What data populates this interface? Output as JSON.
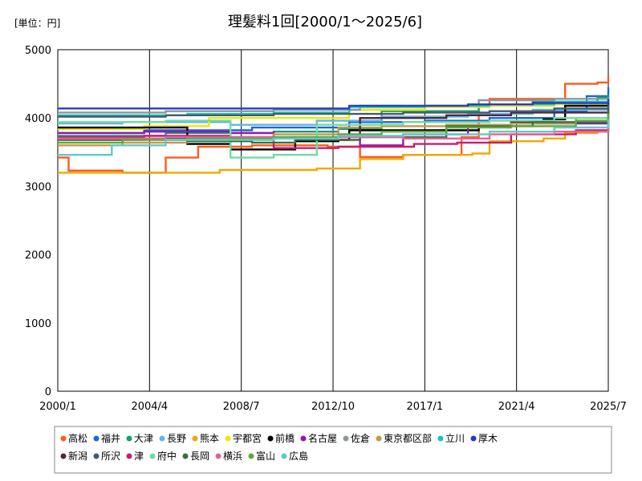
{
  "chart_data": {
    "type": "line",
    "title": "理髪料1回[2000/1～2025/6]",
    "unit_label": "[単位：円]",
    "ylim": [
      0,
      5000
    ],
    "y_ticks": [
      "0",
      "1000",
      "2000",
      "3000",
      "4000",
      "5000"
    ],
    "x_range": [
      2000.0,
      2025.5
    ],
    "x_ticks": [
      {
        "label": "2000/1",
        "value": 2000.0
      },
      {
        "label": "2004/4",
        "value": 2004.25
      },
      {
        "label": "2008/7",
        "value": 2008.5
      },
      {
        "label": "2012/10",
        "value": 2012.75
      },
      {
        "label": "2017/1",
        "value": 2017.0
      },
      {
        "label": "2021/4",
        "value": 2021.25
      },
      {
        "label": "2025/7",
        "value": 2025.5
      }
    ],
    "grid": "vertical only",
    "legend_position": "bottom",
    "series": [
      {
        "name": "高松",
        "color": "#ff5a1e",
        "points": [
          [
            2000.0,
            3420
          ],
          [
            2000.5,
            3230
          ],
          [
            2003.0,
            3200
          ],
          [
            2005.0,
            3420
          ],
          [
            2006.5,
            3580
          ],
          [
            2009.0,
            3600
          ],
          [
            2012.5,
            3580
          ],
          [
            2014.0,
            3430
          ],
          [
            2016.0,
            3460
          ],
          [
            2018.7,
            3720
          ],
          [
            2019.5,
            4180
          ],
          [
            2020.0,
            4280
          ],
          [
            2023.5,
            4500
          ],
          [
            2025.0,
            4520
          ],
          [
            2025.5,
            4600
          ]
        ]
      },
      {
        "name": "福井",
        "color": "#1e64dc",
        "points": [
          [
            2000.0,
            3780
          ],
          [
            2004.0,
            3820
          ],
          [
            2009.0,
            3860
          ],
          [
            2013.5,
            3940
          ],
          [
            2017.0,
            3960
          ],
          [
            2020.0,
            4000
          ],
          [
            2023.0,
            4100
          ],
          [
            2024.5,
            4320
          ],
          [
            2025.5,
            4450
          ]
        ]
      },
      {
        "name": "大津",
        "color": "#14a06e",
        "points": [
          [
            2000.0,
            3740
          ],
          [
            2005.0,
            3780
          ],
          [
            2010.0,
            3800
          ],
          [
            2013.0,
            3840
          ],
          [
            2015.0,
            4100
          ],
          [
            2019.5,
            4200
          ],
          [
            2022.0,
            4240
          ],
          [
            2025.0,
            4300
          ],
          [
            2025.5,
            4340
          ]
        ]
      },
      {
        "name": "長野",
        "color": "#64b4e6",
        "points": [
          [
            2000.0,
            3920
          ],
          [
            2003.0,
            3940
          ],
          [
            2008.0,
            3900
          ],
          [
            2012.0,
            3960
          ],
          [
            2015.0,
            4020
          ],
          [
            2019.0,
            4060
          ],
          [
            2022.0,
            4120
          ],
          [
            2025.5,
            4220
          ]
        ]
      },
      {
        "name": "熊本",
        "color": "#f0a800",
        "points": [
          [
            2000.0,
            3200
          ],
          [
            2004.0,
            3200
          ],
          [
            2007.5,
            3240
          ],
          [
            2012.0,
            3260
          ],
          [
            2014.0,
            3400
          ],
          [
            2016.0,
            3460
          ],
          [
            2019.2,
            3480
          ],
          [
            2020.0,
            3660
          ],
          [
            2022.5,
            3700
          ],
          [
            2023.5,
            3780
          ],
          [
            2025.0,
            3800
          ],
          [
            2025.5,
            3860
          ]
        ]
      },
      {
        "name": "宇都宮",
        "color": "#f0e600",
        "points": [
          [
            2000.0,
            3840
          ],
          [
            2004.0,
            3880
          ],
          [
            2007.0,
            4000
          ],
          [
            2013.5,
            4120
          ],
          [
            2017.0,
            4160
          ],
          [
            2020.0,
            4180
          ],
          [
            2023.0,
            4200
          ],
          [
            2025.5,
            4260
          ]
        ]
      },
      {
        "name": "前橋",
        "color": "#000000",
        "points": [
          [
            2000.0,
            3860
          ],
          [
            2006.0,
            3620
          ],
          [
            2008.0,
            3540
          ],
          [
            2011.0,
            3660
          ],
          [
            2013.0,
            3680
          ],
          [
            2013.5,
            3820
          ],
          [
            2019.5,
            3900
          ],
          [
            2021.0,
            3940
          ],
          [
            2022.5,
            3980
          ],
          [
            2023.5,
            4180
          ],
          [
            2025.5,
            4260
          ]
        ]
      },
      {
        "name": "名古屋",
        "color": "#9614b4",
        "points": [
          [
            2000.0,
            3780
          ],
          [
            2004.0,
            3800
          ],
          [
            2008.0,
            3780
          ],
          [
            2010.0,
            3720
          ],
          [
            2013.0,
            3760
          ],
          [
            2014.0,
            3600
          ],
          [
            2016.0,
            3760
          ],
          [
            2019.0,
            3880
          ],
          [
            2021.0,
            3920
          ],
          [
            2025.5,
            4100
          ]
        ]
      },
      {
        "name": "佐倉",
        "color": "#8c96a0",
        "points": [
          [
            2000.0,
            4080
          ],
          [
            2005.0,
            4100
          ],
          [
            2010.0,
            4120
          ],
          [
            2014.0,
            4180
          ],
          [
            2019.5,
            4260
          ],
          [
            2023.0,
            4280
          ],
          [
            2025.5,
            4300
          ]
        ]
      },
      {
        "name": "東京都区部",
        "color": "#c89650",
        "points": [
          [
            2000.0,
            3600
          ],
          [
            2003.0,
            3640
          ],
          [
            2006.0,
            3700
          ],
          [
            2010.0,
            3760
          ],
          [
            2013.0,
            3860
          ],
          [
            2015.0,
            3880
          ],
          [
            2018.0,
            3900
          ],
          [
            2021.0,
            3920
          ],
          [
            2024.0,
            4000
          ],
          [
            2025.5,
            4040
          ]
        ]
      },
      {
        "name": "立川",
        "color": "#14c8b4",
        "points": [
          [
            2000.0,
            4040
          ],
          [
            2006.0,
            4060
          ],
          [
            2010.0,
            4080
          ],
          [
            2013.5,
            4160
          ],
          [
            2017.0,
            4180
          ],
          [
            2020.0,
            4200
          ],
          [
            2023.0,
            4240
          ],
          [
            2025.5,
            4290
          ]
        ]
      },
      {
        "name": "厚木",
        "color": "#283cc8",
        "points": [
          [
            2000.0,
            4140
          ],
          [
            2009.0,
            4140
          ],
          [
            2013.5,
            4180
          ],
          [
            2019.0,
            4200
          ],
          [
            2022.0,
            4220
          ],
          [
            2025.5,
            4280
          ]
        ]
      },
      {
        "name": "新潟",
        "color": "#50283c",
        "points": [
          [
            2000.0,
            3700
          ],
          [
            2005.0,
            3720
          ],
          [
            2010.0,
            3700
          ],
          [
            2013.0,
            3740
          ],
          [
            2014.0,
            4000
          ],
          [
            2018.0,
            4040
          ],
          [
            2021.0,
            4080
          ],
          [
            2025.5,
            4160
          ]
        ]
      },
      {
        "name": "所沢",
        "color": "#465a6e",
        "points": [
          [
            2000.0,
            4020
          ],
          [
            2005.0,
            4040
          ],
          [
            2010.0,
            4060
          ],
          [
            2013.0,
            4060
          ],
          [
            2016.0,
            4080
          ],
          [
            2020.0,
            4100
          ],
          [
            2023.0,
            4140
          ],
          [
            2025.5,
            4200
          ]
        ]
      },
      {
        "name": "津",
        "color": "#c81e6e",
        "points": [
          [
            2000.0,
            3720
          ],
          [
            2004.0,
            3740
          ],
          [
            2008.0,
            3720
          ],
          [
            2010.0,
            3560
          ],
          [
            2013.0,
            3580
          ],
          [
            2016.5,
            3620
          ],
          [
            2018.5,
            3640
          ],
          [
            2021.0,
            3760
          ],
          [
            2024.0,
            3820
          ],
          [
            2025.5,
            4000
          ]
        ]
      },
      {
        "name": "府中",
        "color": "#6edca0",
        "points": [
          [
            2000.0,
            3940
          ],
          [
            2005.0,
            3960
          ],
          [
            2008.0,
            3420
          ],
          [
            2010.0,
            3460
          ],
          [
            2012.0,
            3900
          ],
          [
            2016.0,
            3940
          ],
          [
            2020.0,
            3960
          ],
          [
            2023.0,
            4000
          ],
          [
            2025.5,
            4100
          ]
        ]
      },
      {
        "name": "長岡",
        "color": "#3c6e3c",
        "points": [
          [
            2000.0,
            3680
          ],
          [
            2004.0,
            3700
          ],
          [
            2006.0,
            3660
          ],
          [
            2009.0,
            3640
          ],
          [
            2011.0,
            3680
          ],
          [
            2014.0,
            3720
          ],
          [
            2018.0,
            3880
          ],
          [
            2022.0,
            3940
          ],
          [
            2025.5,
            4120
          ]
        ]
      },
      {
        "name": "横浜",
        "color": "#e6609a",
        "points": [
          [
            2000.0,
            3700
          ],
          [
            2005.0,
            3720
          ],
          [
            2010.0,
            3700
          ],
          [
            2013.0,
            3720
          ],
          [
            2016.0,
            3700
          ],
          [
            2020.0,
            3760
          ],
          [
            2023.0,
            3800
          ],
          [
            2025.5,
            3920
          ]
        ]
      },
      {
        "name": "富山",
        "color": "#5aaa3c",
        "points": [
          [
            2000.0,
            3640
          ],
          [
            2003.0,
            3680
          ],
          [
            2006.0,
            3700
          ],
          [
            2010.0,
            3720
          ],
          [
            2013.0,
            3760
          ],
          [
            2015.0,
            3800
          ],
          [
            2018.0,
            3860
          ],
          [
            2021.0,
            3880
          ],
          [
            2024.0,
            3960
          ],
          [
            2025.5,
            4060
          ]
        ]
      },
      {
        "name": "広島",
        "color": "#64c8c8",
        "points": [
          [
            2000.0,
            3460
          ],
          [
            2002.5,
            3600
          ],
          [
            2005.0,
            3680
          ],
          [
            2010.0,
            3700
          ],
          [
            2013.0,
            3740
          ],
          [
            2016.0,
            3760
          ],
          [
            2020.0,
            3800
          ],
          [
            2023.0,
            3860
          ],
          [
            2025.5,
            3980
          ]
        ]
      }
    ]
  }
}
